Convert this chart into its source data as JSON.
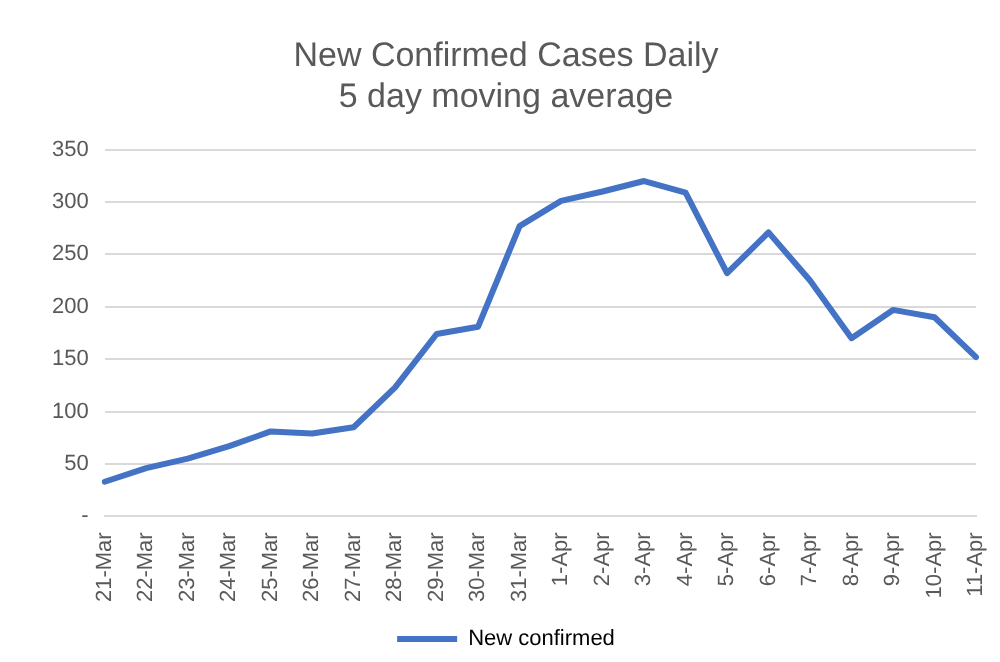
{
  "chart_data": {
    "type": "line",
    "title": "New Confirmed Cases Daily\n5 day moving average",
    "categories": [
      "21-Mar",
      "22-Mar",
      "23-Mar",
      "24-Mar",
      "25-Mar",
      "26-Mar",
      "27-Mar",
      "28-Mar",
      "29-Mar",
      "30-Mar",
      "31-Mar",
      "1-Apr",
      "2-Apr",
      "3-Apr",
      "4-Apr",
      "5-Apr",
      "6-Apr",
      "7-Apr",
      "8-Apr",
      "9-Apr",
      "10-Apr",
      "11-Apr"
    ],
    "series": [
      {
        "name": "New confirmed",
        "color": "#4472c4",
        "values": [
          33,
          46,
          55,
          67,
          81,
          79,
          85,
          123,
          174,
          181,
          277,
          301,
          310,
          320,
          309,
          232,
          271,
          225,
          170,
          197,
          190,
          152
        ]
      }
    ],
    "ylim": [
      0,
      350
    ],
    "yticks": [
      {
        "value": 0,
        "label": "-"
      },
      50,
      100,
      150,
      200,
      250,
      300,
      350
    ],
    "grid": "y",
    "legend": "bottom",
    "marker": "none",
    "line_style": "solid"
  }
}
